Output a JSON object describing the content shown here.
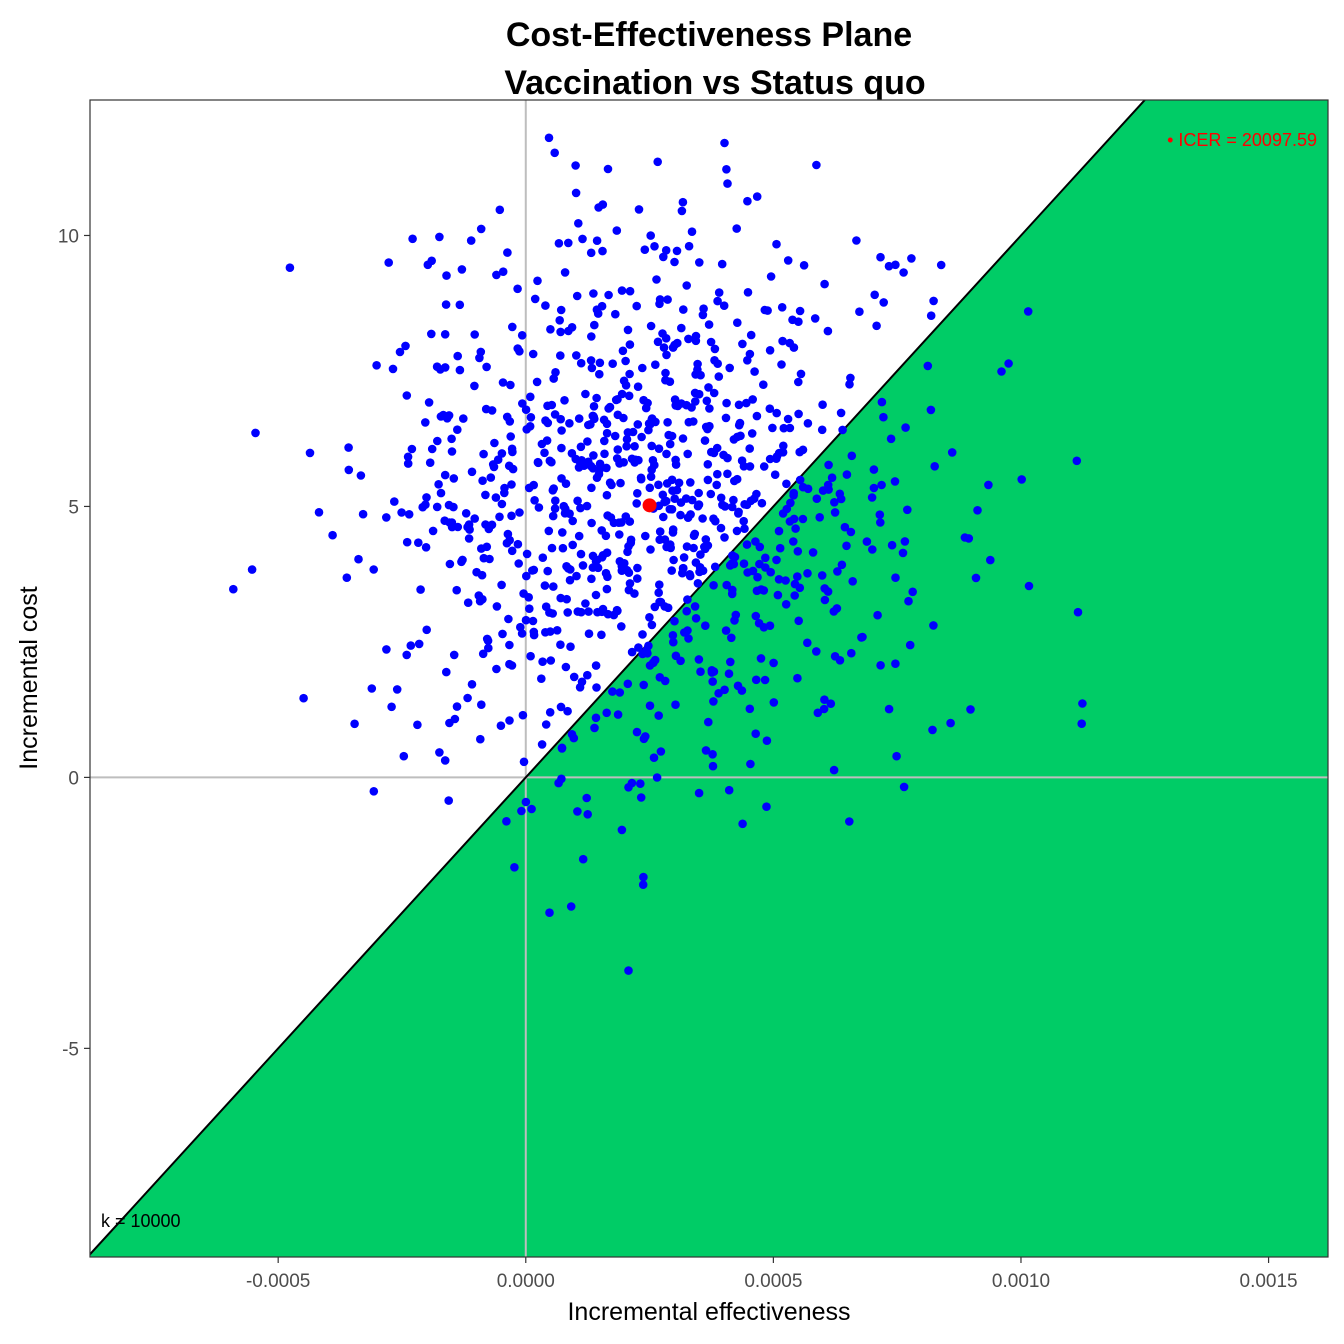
{
  "chart_data": {
    "type": "scatter",
    "title": "Cost-Effectiveness Plane",
    "subtitle": "Vaccination vs Status quo",
    "xlabel": "Incremental effectiveness",
    "ylabel": "Incremental cost",
    "xlim": [
      -0.00088,
      0.00162
    ],
    "ylim": [
      -8.85,
      12.5
    ],
    "x_ticks": [
      {
        "value": -0.0005,
        "label": "-0.0005"
      },
      {
        "value": 0.0,
        "label": "0.0000"
      },
      {
        "value": 0.0005,
        "label": "0.0005"
      },
      {
        "value": 0.001,
        "label": "0.0010"
      },
      {
        "value": 0.0015,
        "label": "0.0015"
      }
    ],
    "y_ticks": [
      {
        "value": -5,
        "label": "-5"
      },
      {
        "value": 0,
        "label": "0"
      },
      {
        "value": 5,
        "label": "5"
      },
      {
        "value": 10,
        "label": "10"
      }
    ],
    "grid": false,
    "reference_lines": {
      "x": 0,
      "y": 0
    },
    "threshold": {
      "k": 10000,
      "label": "k = 10000",
      "region_fill": "#00cc66"
    },
    "icer": {
      "x": 0.00025,
      "y": 5.02,
      "label": "• ICER = 20097.59",
      "color": "#ff0000"
    },
    "point_color": "#0000ff",
    "points_note_seed": 7,
    "simulations": {
      "count": 1000,
      "x_mean": 0.00025,
      "x_sd": 0.00028,
      "y_mean": 5.02,
      "y_sd": 2.65
    }
  }
}
